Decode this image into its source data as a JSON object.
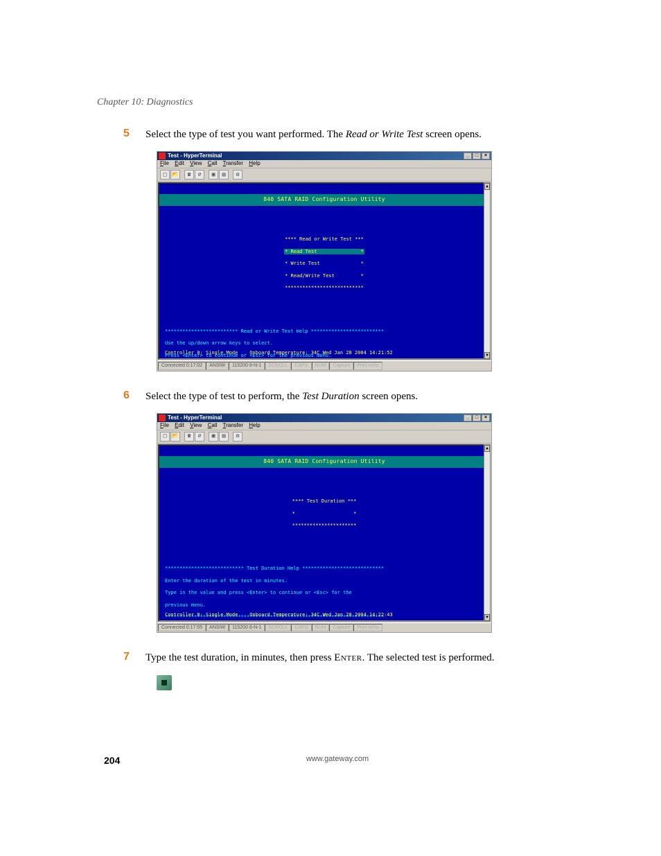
{
  "chapter_header": "Chapter 10: Diagnostics",
  "steps": {
    "s5": {
      "num": "5",
      "text_a": "Select the type of test you want performed. The ",
      "ital": "Read or Write Test",
      "text_b": " screen opens."
    },
    "s6": {
      "num": "6",
      "text_a": "Select the type of test to perform, the ",
      "ital": "Test Duration",
      "text_b": " screen opens."
    },
    "s7": {
      "num": "7",
      "text_a": "Type the test duration, in minutes, then press ",
      "scap": "Enter",
      "text_b": ". The selected test is performed."
    }
  },
  "ht_window": {
    "title": "Test - HyperTerminal",
    "menus": {
      "file": "File",
      "edit": "Edit",
      "view": "View",
      "call": "Call",
      "transfer": "Transfer",
      "help": "Help"
    },
    "win_btns": {
      "min": "_",
      "max": "□",
      "close": "×"
    },
    "sbar": {
      "up": "▲",
      "down": "▼"
    }
  },
  "term": {
    "banner": "840 SATA RAID Configuration Utility",
    "colors": {
      "bg": "#0000a8",
      "fg": "#ffff55",
      "banner_bg": "#008080",
      "help_fg": "#00ffff",
      "hi_bg": "#008080"
    }
  },
  "shot1": {
    "menu_header": "**** Read or Write Test ***",
    "m1": "* Read Test               *",
    "m2": "* Write Test              *",
    "m3": "* Read/Write Test         *",
    "m_rule": "***************************",
    "help_title": "************************* Read or Write Test Help *************************",
    "help_l1": "Use the up/down arrow keys to select.",
    "help_l2": "Press <Enter> to continue or <Esc> for the previous menu.",
    "help_rule": "***************************************************************************",
    "status": "Controller 0: Single Mode    Onboard Temperature: 34C Wed Jan 28 2004 14:21:52",
    "statusbar": {
      "conn": "Connected 0:17:02",
      "term": "ANSIW",
      "cfg": "115200 8-N-1",
      "scroll": "SCROLL",
      "caps": "CAPS",
      "num": "NUM",
      "capture": "Capture",
      "echo": "Print echo"
    }
  },
  "shot2": {
    "menu_header": "**** Test Duration ***",
    "m1": "*                    *",
    "m_rule": "**********************",
    "help_title": "*************************** Test Duration Help ****************************",
    "help_l1": "Enter the duration of the test in minutes.",
    "help_l2": "Type in the value and press <Enter> to continue or <Esc> for the",
    "help_l3": "previous menu.",
    "help_rule": "***************************************************************************",
    "status": "Controller 0: Single Mode    Onboard Temperature: 34C Wed Jan 28 2004 14:22:43",
    "statusbar": {
      "conn": "Connected 0:17:55",
      "term": "ANSIW",
      "cfg": "115200 8-N-1",
      "scroll": "SCROLL",
      "caps": "CAPS",
      "num": "NUM",
      "capture": "Capture",
      "echo": "Print echo"
    }
  },
  "footer": {
    "page": "204",
    "url": "www.gateway.com"
  }
}
